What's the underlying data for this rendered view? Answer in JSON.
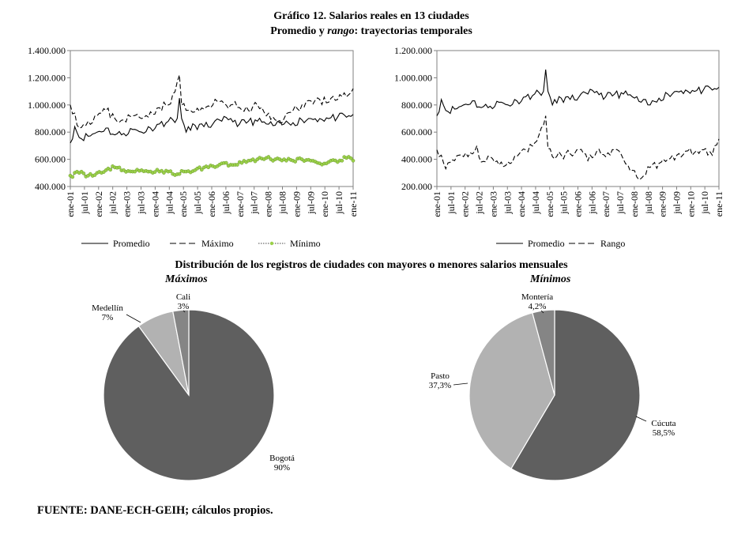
{
  "figure": {
    "title": "Gráfico 12. Salarios reales en 13 ciudades",
    "subtitle_plain": "Promedio y ",
    "subtitle_italic": "rango",
    "subtitle_rest": ": trayectorias temporales",
    "section_title": "Distribución de los registros de ciudades con mayores o menores salarios mensuales",
    "source": "FUENTE: DANE-ECH-GEIH; cálculos propios."
  },
  "colors": {
    "line": "#000000",
    "min_marker": "#9bd04a",
    "pie_dark": "#5f5f5f",
    "pie_light": "#b2b2b2",
    "pie_mid": "#858585"
  },
  "chart_data": [
    {
      "type": "line",
      "title": "",
      "xlabel": "",
      "ylabel": "",
      "ylim": [
        400000,
        1400000
      ],
      "yticks": [
        "400.000",
        "600.000",
        "800.000",
        "1.000.000",
        "1.200.000",
        "1.400.000"
      ],
      "xtick_labels": [
        "ene-01",
        "jul-01",
        "ene-02",
        "jul-02",
        "ene-03",
        "jul-03",
        "ene-04",
        "jul-04",
        "ene-05",
        "jul-05",
        "ene-06",
        "jul-06",
        "ene-07",
        "jul-07",
        "ene-08",
        "jul-08",
        "ene-09",
        "jul-09",
        "ene-10",
        "jul-10",
        "ene-11"
      ],
      "x_months": 128,
      "series": [
        {
          "name": "Promedio",
          "style": "solid",
          "anchors": [
            [
              0,
              720000
            ],
            [
              2,
              840000
            ],
            [
              4,
              760000
            ],
            [
              8,
              770000
            ],
            [
              12,
              800000
            ],
            [
              16,
              830000
            ],
            [
              20,
              780000
            ],
            [
              24,
              790000
            ],
            [
              28,
              820000
            ],
            [
              32,
              800000
            ],
            [
              36,
              830000
            ],
            [
              40,
              860000
            ],
            [
              44,
              880000
            ],
            [
              48,
              900000
            ],
            [
              49,
              1050000
            ],
            [
              50,
              900000
            ],
            [
              52,
              800000
            ],
            [
              56,
              850000
            ],
            [
              60,
              840000
            ],
            [
              64,
              860000
            ],
            [
              68,
              880000
            ],
            [
              72,
              900000
            ],
            [
              76,
              860000
            ],
            [
              80,
              880000
            ],
            [
              84,
              880000
            ],
            [
              88,
              860000
            ],
            [
              92,
              850000
            ],
            [
              96,
              860000
            ],
            [
              100,
              870000
            ],
            [
              104,
              890000
            ],
            [
              108,
              900000
            ],
            [
              112,
              900000
            ],
            [
              116,
              900000
            ],
            [
              120,
              910000
            ],
            [
              124,
              910000
            ],
            [
              127,
              930000
            ]
          ],
          "noise": 30000
        },
        {
          "name": "Máximo",
          "style": "dashed",
          "anchors": [
            [
              0,
              1000000
            ],
            [
              2,
              940000
            ],
            [
              4,
              830000
            ],
            [
              8,
              880000
            ],
            [
              12,
              920000
            ],
            [
              16,
              960000
            ],
            [
              20,
              900000
            ],
            [
              24,
              890000
            ],
            [
              28,
              920000
            ],
            [
              32,
              900000
            ],
            [
              36,
              950000
            ],
            [
              40,
              980000
            ],
            [
              44,
              1000000
            ],
            [
              46,
              1080000
            ],
            [
              48,
              1170000
            ],
            [
              49,
              1220000
            ],
            [
              50,
              1000000
            ],
            [
              52,
              960000
            ],
            [
              56,
              950000
            ],
            [
              60,
              970000
            ],
            [
              64,
              1000000
            ],
            [
              68,
              1030000
            ],
            [
              72,
              1000000
            ],
            [
              76,
              980000
            ],
            [
              80,
              960000
            ],
            [
              84,
              1000000
            ],
            [
              88,
              920000
            ],
            [
              92,
              890000
            ],
            [
              96,
              900000
            ],
            [
              100,
              960000
            ],
            [
              104,
              1000000
            ],
            [
              108,
              1030000
            ],
            [
              112,
              1040000
            ],
            [
              116,
              1020000
            ],
            [
              120,
              1040000
            ],
            [
              124,
              1060000
            ],
            [
              127,
              1120000
            ]
          ],
          "noise": 35000
        },
        {
          "name": "Mínimo",
          "style": "dotted-marker",
          "anchors": [
            [
              0,
              480000
            ],
            [
              4,
              500000
            ],
            [
              8,
              480000
            ],
            [
              12,
              500000
            ],
            [
              16,
              520000
            ],
            [
              20,
              540000
            ],
            [
              24,
              520000
            ],
            [
              28,
              510000
            ],
            [
              32,
              520000
            ],
            [
              36,
              510000
            ],
            [
              40,
              510000
            ],
            [
              44,
              510000
            ],
            [
              48,
              490000
            ],
            [
              52,
              510000
            ],
            [
              56,
              520000
            ],
            [
              60,
              540000
            ],
            [
              64,
              550000
            ],
            [
              68,
              570000
            ],
            [
              72,
              560000
            ],
            [
              76,
              580000
            ],
            [
              80,
              590000
            ],
            [
              84,
              600000
            ],
            [
              88,
              610000
            ],
            [
              92,
              600000
            ],
            [
              96,
              600000
            ],
            [
              100,
              590000
            ],
            [
              104,
              600000
            ],
            [
              108,
              590000
            ],
            [
              112,
              570000
            ],
            [
              116,
              580000
            ],
            [
              120,
              580000
            ],
            [
              124,
              610000
            ],
            [
              127,
              590000
            ]
          ],
          "noise": 15000
        }
      ],
      "legend": [
        "Promedio",
        "Máximo",
        "Mínimo"
      ],
      "legend_position": "bottom"
    },
    {
      "type": "line",
      "title": "",
      "xlabel": "",
      "ylabel": "",
      "ylim": [
        200000,
        1200000
      ],
      "yticks": [
        "200.000",
        "400.000",
        "600.000",
        "800.000",
        "1.000.000",
        "1.200.000"
      ],
      "xtick_labels": [
        "ene-01",
        "jul-01",
        "ene-02",
        "jul-02",
        "ene-03",
        "jul-03",
        "ene-04",
        "jul-04",
        "ene-05",
        "jul-05",
        "ene-06",
        "jul-06",
        "ene-07",
        "jul-07",
        "ene-08",
        "jul-08",
        "ene-09",
        "jul-09",
        "ene-10",
        "jul-10",
        "ene-11"
      ],
      "x_months": 128,
      "series": [
        {
          "name": "Promedio",
          "style": "solid",
          "anchors": [
            [
              0,
              720000
            ],
            [
              2,
              840000
            ],
            [
              4,
              760000
            ],
            [
              8,
              770000
            ],
            [
              12,
              800000
            ],
            [
              16,
              830000
            ],
            [
              20,
              780000
            ],
            [
              24,
              790000
            ],
            [
              28,
              820000
            ],
            [
              32,
              800000
            ],
            [
              36,
              830000
            ],
            [
              40,
              860000
            ],
            [
              44,
              880000
            ],
            [
              48,
              900000
            ],
            [
              49,
              1060000
            ],
            [
              50,
              900000
            ],
            [
              52,
              800000
            ],
            [
              56,
              850000
            ],
            [
              60,
              840000
            ],
            [
              64,
              860000
            ],
            [
              68,
              880000
            ],
            [
              72,
              900000
            ],
            [
              76,
              860000
            ],
            [
              80,
              880000
            ],
            [
              84,
              880000
            ],
            [
              88,
              860000
            ],
            [
              92,
              820000
            ],
            [
              96,
              800000
            ],
            [
              100,
              850000
            ],
            [
              104,
              880000
            ],
            [
              108,
              900000
            ],
            [
              112,
              910000
            ],
            [
              116,
              900000
            ],
            [
              120,
              910000
            ],
            [
              124,
              910000
            ],
            [
              127,
              930000
            ]
          ],
          "noise": 30000
        },
        {
          "name": "Rango",
          "style": "dashed",
          "anchors": [
            [
              0,
              470000
            ],
            [
              2,
              430000
            ],
            [
              4,
              330000
            ],
            [
              8,
              390000
            ],
            [
              12,
              420000
            ],
            [
              16,
              440000
            ],
            [
              18,
              500000
            ],
            [
              20,
              380000
            ],
            [
              24,
              420000
            ],
            [
              28,
              360000
            ],
            [
              32,
              380000
            ],
            [
              36,
              420000
            ],
            [
              40,
              470000
            ],
            [
              44,
              520000
            ],
            [
              46,
              580000
            ],
            [
              48,
              650000
            ],
            [
              49,
              720000
            ],
            [
              50,
              480000
            ],
            [
              52,
              420000
            ],
            [
              56,
              430000
            ],
            [
              60,
              440000
            ],
            [
              64,
              470000
            ],
            [
              68,
              390000
            ],
            [
              72,
              460000
            ],
            [
              76,
              420000
            ],
            [
              80,
              470000
            ],
            [
              84,
              400000
            ],
            [
              88,
              320000
            ],
            [
              92,
              260000
            ],
            [
              96,
              340000
            ],
            [
              100,
              370000
            ],
            [
              104,
              400000
            ],
            [
              108,
              430000
            ],
            [
              112,
              460000
            ],
            [
              116,
              450000
            ],
            [
              120,
              470000
            ],
            [
              124,
              430000
            ],
            [
              127,
              550000
            ]
          ],
          "noise": 30000
        }
      ],
      "legend": [
        "Promedio",
        "Rango"
      ],
      "legend_position": "bottom"
    },
    {
      "type": "pie",
      "title": "Máximos",
      "slices": [
        {
          "label": "Bogotá",
          "value_label": "90%",
          "value": 90,
          "shade": "pie_dark"
        },
        {
          "label": "Medellín",
          "value_label": "7%",
          "value": 7,
          "shade": "pie_light"
        },
        {
          "label": "Cali",
          "value_label": "3%",
          "value": 3,
          "shade": "pie_mid"
        }
      ]
    },
    {
      "type": "pie",
      "title": "Mínimos",
      "slices": [
        {
          "label": "Cúcuta",
          "value_label": "58,5%",
          "value": 58.5,
          "shade": "pie_dark"
        },
        {
          "label": "Pasto",
          "value_label": "37,3%",
          "value": 37.3,
          "shade": "pie_light"
        },
        {
          "label": "Montería",
          "value_label": "4,2%",
          "value": 4.2,
          "shade": "pie_mid"
        }
      ]
    }
  ]
}
